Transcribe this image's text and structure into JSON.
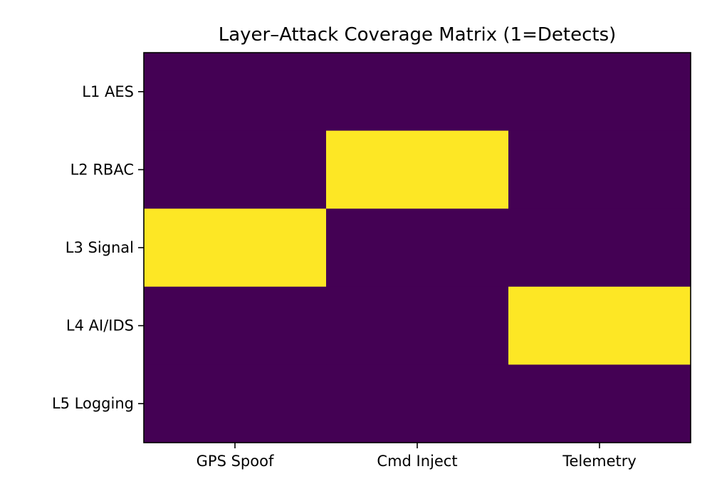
{
  "chart_data": {
    "type": "heatmap",
    "title": "Layer–Attack Coverage Matrix (1=Detects)",
    "xlabel": "",
    "ylabel": "",
    "x_categories": [
      "GPS Spoof",
      "Cmd Inject",
      "Telemetry"
    ],
    "y_categories": [
      "L1 AES",
      "L2 RBAC",
      "L3 Signal",
      "L4 AI/IDS",
      "L5 Logging"
    ],
    "values": [
      [
        0,
        0,
        0
      ],
      [
        0,
        1,
        0
      ],
      [
        1,
        0,
        0
      ],
      [
        0,
        0,
        1
      ],
      [
        0,
        0,
        0
      ]
    ],
    "value_range": [
      0,
      1
    ],
    "colormap": "viridis",
    "colors": {
      "low": "#440154",
      "high": "#fde725"
    },
    "grid": false,
    "legend": "none"
  }
}
